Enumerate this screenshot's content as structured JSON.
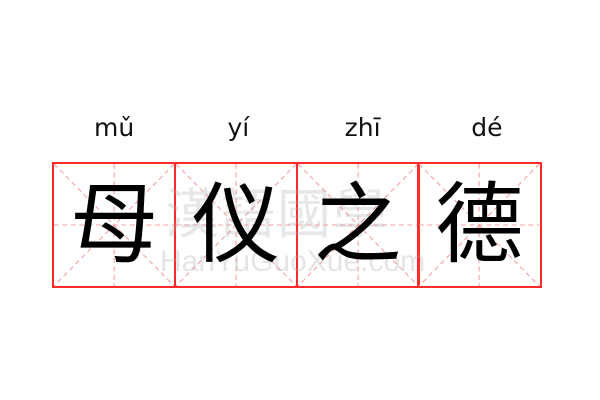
{
  "words": [
    {
      "pinyin": "mǔ",
      "char": "母"
    },
    {
      "pinyin": "yí",
      "char": "仪"
    },
    {
      "pinyin": "zhī",
      "char": "之"
    },
    {
      "pinyin": "dé",
      "char": "德"
    }
  ],
  "watermark": {
    "chinese": "漢語國學",
    "latin": "HanYuGuoXue.com"
  },
  "colors": {
    "border": "#ff2a2a",
    "guide": "#f7a0a0",
    "text": "#000000"
  }
}
